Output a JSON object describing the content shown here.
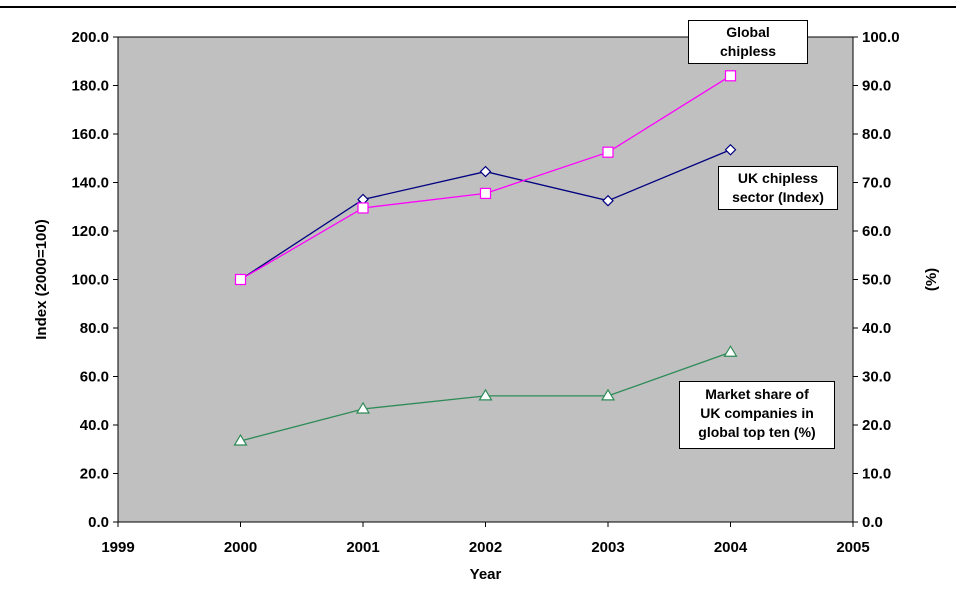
{
  "chart_data": {
    "type": "line",
    "title": "",
    "xlabel": "Year",
    "ylabel_left": "Index (2000=100)",
    "ylabel_right": "(%)",
    "x_ticks": [
      "1999",
      "2000",
      "2001",
      "2002",
      "2003",
      "2004",
      "2005"
    ],
    "xlim": [
      1999,
      2005
    ],
    "ylim_left": [
      0,
      200
    ],
    "ylim_right": [
      0,
      100
    ],
    "y_ticks_left": [
      "0.0",
      "20.0",
      "40.0",
      "60.0",
      "80.0",
      "100.0",
      "120.0",
      "140.0",
      "160.0",
      "180.0",
      "200.0"
    ],
    "y_ticks_right": [
      "0.0",
      "10.0",
      "20.0",
      "30.0",
      "40.0",
      "50.0",
      "60.0",
      "70.0",
      "80.0",
      "90.0",
      "100.0"
    ],
    "grid": false,
    "plot_background": "#c0c0c0",
    "series": [
      {
        "name": "UK chipless sector (Index)",
        "axis": "left",
        "marker": "diamond",
        "color": "#000080",
        "x": [
          2000,
          2001,
          2002,
          2003,
          2004
        ],
        "values": [
          100.0,
          133.0,
          144.5,
          132.5,
          153.5
        ]
      },
      {
        "name": "Global chipless",
        "axis": "left",
        "marker": "square",
        "color": "#ff00ff",
        "x": [
          2000,
          2001,
          2002,
          2003,
          2004
        ],
        "values": [
          100.0,
          129.5,
          135.5,
          152.5,
          184.0
        ]
      },
      {
        "name": "Market share of UK companies in global top ten (%)",
        "axis": "right",
        "marker": "triangle",
        "color": "#2e8b57",
        "x": [
          2000,
          2001,
          2002,
          2003,
          2004
        ],
        "values": [
          16.7,
          23.3,
          26.0,
          26.0,
          35.0
        ]
      }
    ]
  },
  "callouts": {
    "global": "Global\nchipless",
    "uk": "UK chipless\nsector (Index)",
    "share": "Market share of\nUK companies in\nglobal top ten (%)"
  }
}
